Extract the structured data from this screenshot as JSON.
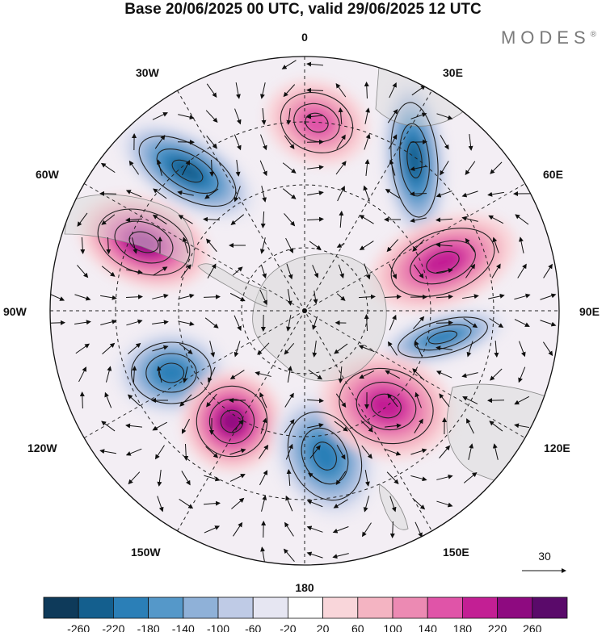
{
  "title": "Base 20/06/2025 00 UTC, valid 29/06/2025 12 UTC",
  "brand": "MODES",
  "brand_mark": "®",
  "longitude_labels": {
    "top": "0",
    "bottom": "180",
    "left": "90W",
    "right": "90E",
    "upper_left_1": "30W",
    "upper_left_2": "60W",
    "upper_right_1": "30E",
    "upper_right_2": "60E",
    "lower_left_1": "120W",
    "lower_left_2": "150W",
    "lower_right_1": "120E",
    "lower_right_2": "150E"
  },
  "vector_reference": "30",
  "colorbar": {
    "labels": [
      "-260",
      "-220",
      "-180",
      "-140",
      "-100",
      "-60",
      "-20",
      "20",
      "60",
      "100",
      "140",
      "180",
      "220",
      "260"
    ],
    "colors": [
      "#0e3a5a",
      "#145f8e",
      "#2b7fb7",
      "#5598c9",
      "#8fb1d8",
      "#bfcbe6",
      "#e6e6f2",
      "#ffffff",
      "#f9d6da",
      "#f4b4c2",
      "#ec8ab3",
      "#e054a8",
      "#c31f94",
      "#8e0a80",
      "#5a0a6a"
    ]
  },
  "anomaly_centers": [
    {
      "sign": "neg",
      "strength": 220
    },
    {
      "sign": "neg",
      "strength": 230
    },
    {
      "sign": "pos",
      "strength": 230
    },
    {
      "sign": "pos",
      "strength": 190
    },
    {
      "sign": "neg",
      "strength": 190
    },
    {
      "sign": "neg",
      "strength": 200
    },
    {
      "sign": "pos",
      "strength": 240
    },
    {
      "sign": "neg",
      "strength": 210
    },
    {
      "sign": "pos",
      "strength": 200
    },
    {
      "sign": "pos",
      "strength": 150
    }
  ]
}
